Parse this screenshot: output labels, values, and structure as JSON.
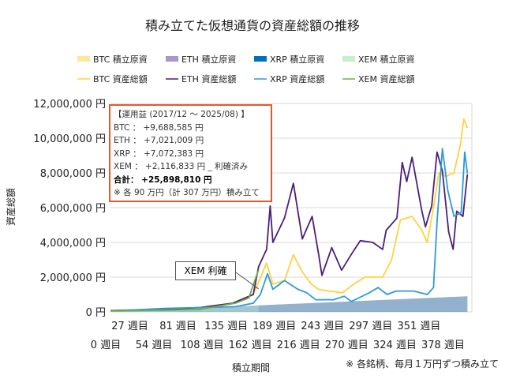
{
  "chart_data": {
    "type": "line",
    "title": "積み立てた仮想通貨の資産総額の推移",
    "xlabel": "積立期間",
    "ylabel": "資産総額",
    "note": "※ 各銘柄、毎月１万円ずつ積み立て",
    "xlim": [
      0,
      405
    ],
    "ylim": [
      0,
      12000000
    ],
    "grid": true,
    "legend_position": "top",
    "x_ticks": [
      "0 週目",
      "27 週目",
      "54 週目",
      "81 週目",
      "108 週目",
      "135 週目",
      "162 週目",
      "189 週目",
      "216 週目",
      "243 週目",
      "270 週目",
      "297 週目",
      "324 週目",
      "351 週目",
      "378 週目"
    ],
    "x_tick_values": [
      0,
      27,
      54,
      81,
      108,
      135,
      162,
      189,
      216,
      243,
      270,
      297,
      324,
      351,
      378
    ],
    "y_ticks": [
      "0 円",
      "2,000,000 円",
      "4,000,000 円",
      "6,000,000 円",
      "8,000,000 円",
      "10,000,000 円",
      "12,000,000 円"
    ],
    "y_tick_values": [
      0,
      2000000,
      4000000,
      6000000,
      8000000,
      10000000,
      12000000
    ],
    "area_series": [
      {
        "name": "BTC 積立原資",
        "color": "#FFE699",
        "points": [
          [
            0,
            0
          ],
          [
            400,
            900000
          ]
        ]
      },
      {
        "name": "ETH 積立原資",
        "color": "#A997C9",
        "points": [
          [
            0,
            0
          ],
          [
            400,
            900000
          ]
        ]
      },
      {
        "name": "XRP 積立原資",
        "color": "#0070C0",
        "points": [
          [
            0,
            0
          ],
          [
            400,
            900000
          ]
        ]
      },
      {
        "name": "XEM 積立原資",
        "color": "#C6EFCE",
        "points": [
          [
            0,
            0
          ],
          [
            166,
            370000
          ]
        ]
      }
    ],
    "line_series": [
      {
        "name": "BTC 資産総額",
        "color": "#FFD23F",
        "points": [
          [
            0,
            50000
          ],
          [
            60,
            150000
          ],
          [
            100,
            250000
          ],
          [
            140,
            500000
          ],
          [
            160,
            1000000
          ],
          [
            175,
            2800000
          ],
          [
            182,
            1600000
          ],
          [
            195,
            1800000
          ],
          [
            205,
            3300000
          ],
          [
            215,
            2300000
          ],
          [
            225,
            1600000
          ],
          [
            233,
            1300000
          ],
          [
            245,
            1200000
          ],
          [
            260,
            1100000
          ],
          [
            270,
            1500000
          ],
          [
            285,
            2000000
          ],
          [
            305,
            2000000
          ],
          [
            315,
            3000000
          ],
          [
            325,
            5300000
          ],
          [
            338,
            5500000
          ],
          [
            349,
            4700000
          ],
          [
            355,
            4000000
          ],
          [
            362,
            6000000
          ],
          [
            368,
            8000000
          ],
          [
            376,
            7800000
          ],
          [
            385,
            8000000
          ],
          [
            392,
            9600000
          ],
          [
            396,
            11100000
          ],
          [
            400,
            10590000
          ]
        ]
      },
      {
        "name": "ETH 資産総額",
        "color": "#4B1F7A",
        "points": [
          [
            0,
            80000
          ],
          [
            60,
            150000
          ],
          [
            100,
            250000
          ],
          [
            137,
            500000
          ],
          [
            160,
            1000000
          ],
          [
            166,
            2600000
          ],
          [
            175,
            3600000
          ],
          [
            179,
            6100000
          ],
          [
            182,
            4000000
          ],
          [
            195,
            5400000
          ],
          [
            205,
            7400000
          ],
          [
            215,
            4200000
          ],
          [
            226,
            5500000
          ],
          [
            233,
            3400000
          ],
          [
            237,
            2100000
          ],
          [
            248,
            3700000
          ],
          [
            259,
            2400000
          ],
          [
            271,
            3400000
          ],
          [
            280,
            4100000
          ],
          [
            294,
            4000000
          ],
          [
            305,
            3600000
          ],
          [
            309,
            4700000
          ],
          [
            321,
            5400000
          ],
          [
            327,
            8600000
          ],
          [
            332,
            7500000
          ],
          [
            338,
            8900000
          ],
          [
            349,
            5800000
          ],
          [
            353,
            4900000
          ],
          [
            360,
            6100000
          ],
          [
            366,
            9200000
          ],
          [
            372,
            8100000
          ],
          [
            379,
            4600000
          ],
          [
            384,
            3600000
          ],
          [
            388,
            5800000
          ],
          [
            395,
            5500000
          ],
          [
            400,
            7920000
          ]
        ]
      },
      {
        "name": "XRP 資産総額",
        "color": "#2E9BD6",
        "points": [
          [
            0,
            50000
          ],
          [
            60,
            200000
          ],
          [
            100,
            250000
          ],
          [
            140,
            300000
          ],
          [
            160,
            500000
          ],
          [
            168,
            1000000
          ],
          [
            176,
            2200000
          ],
          [
            182,
            1300000
          ],
          [
            195,
            1800000
          ],
          [
            210,
            1300000
          ],
          [
            220,
            1100000
          ],
          [
            230,
            700000
          ],
          [
            250,
            700000
          ],
          [
            262,
            900000
          ],
          [
            270,
            600000
          ],
          [
            290,
            1100000
          ],
          [
            300,
            1400000
          ],
          [
            310,
            1000000
          ],
          [
            320,
            1200000
          ],
          [
            340,
            1200000
          ],
          [
            355,
            1000000
          ],
          [
            362,
            1400000
          ],
          [
            366,
            5200000
          ],
          [
            372,
            9400000
          ],
          [
            378,
            7000000
          ],
          [
            385,
            5500000
          ],
          [
            393,
            5700000
          ],
          [
            397,
            9200000
          ],
          [
            400,
            7970000
          ]
        ]
      },
      {
        "name": "XEM 資産総額",
        "color": "#70AD47",
        "points": [
          [
            0,
            60000
          ],
          [
            60,
            100000
          ],
          [
            100,
            150000
          ],
          [
            140,
            500000
          ],
          [
            155,
            800000
          ],
          [
            163,
            2000000
          ],
          [
            166,
            2400000
          ]
        ]
      }
    ],
    "legend": [
      {
        "label": "BTC  積立原資",
        "color": "#FFE699",
        "kind": "area"
      },
      {
        "label": "ETH  積立原資",
        "color": "#A997C9",
        "kind": "area"
      },
      {
        "label": "XRP  積立原資",
        "color": "#0070C0",
        "kind": "area"
      },
      {
        "label": "XEM  積立原資",
        "color": "#C6EFCE",
        "kind": "area"
      },
      {
        "label": "BTC  資産総額",
        "color": "#FFD23F",
        "kind": "line"
      },
      {
        "label": "ETH  資産総額",
        "color": "#4B1F7A",
        "kind": "line"
      },
      {
        "label": "XRP  資産総額",
        "color": "#2E9BD6",
        "kind": "line"
      },
      {
        "label": "XEM  資産総額",
        "color": "#70AD47",
        "kind": "line"
      }
    ],
    "annotation_box": {
      "title": "【運用益 (2017/12 ～ 2025/08) 】",
      "lines": [
        "BTC ： +9,688,585 円",
        "ETH ： +7,021,009 円",
        "XRP ： +7,072,383 円",
        "XEM ： +2,116,833 円 _ 利確済み"
      ],
      "total": "合計： +25,898,810 円",
      "footnote": "※ 各 90 万円（計 307 万円）積み立て",
      "border_color": "#E8572A"
    },
    "callout": {
      "text": "XEM 利確",
      "week": 166
    }
  }
}
